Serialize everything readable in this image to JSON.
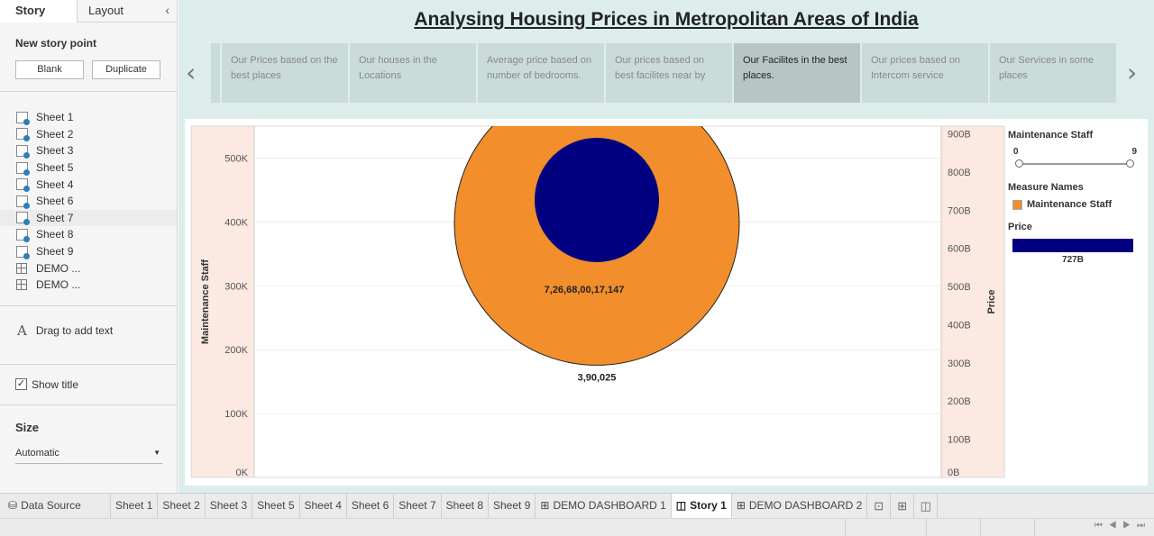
{
  "left_panel": {
    "tabs": [
      "Story",
      "Layout"
    ],
    "collapse_glyph": "‹",
    "new_story_point": "New story point",
    "blank_label": "Blank",
    "duplicate_label": "Duplicate",
    "sheets": [
      "Sheet 1",
      "Sheet 2",
      "Sheet 3",
      "Sheet 5",
      "Sheet 4",
      "Sheet 6",
      "Sheet 7",
      "Sheet 8",
      "Sheet 9"
    ],
    "dashboards": [
      "DEMO ...",
      "DEMO ..."
    ],
    "drag_text": "Drag to add text",
    "show_title_label": "Show title",
    "show_title_checked": "✓",
    "size_title": "Size",
    "size_value": "Automatic"
  },
  "story": {
    "title": "Analysing Housing Prices in Metropolitan Areas of India",
    "prev_icon": "‹",
    "next_icon": "›",
    "points": [
      "Our Prices based on the best places",
      "Our houses in the Locations",
      "Average price based on number of bedrooms.",
      "Our prices based on best facilites near by",
      "Our Facilites in the best places.",
      "Our prices based on Intercom service",
      "Our Services in some places"
    ],
    "active_point": 4
  },
  "chart_data": {
    "type": "scatter",
    "mark": "circle",
    "left_axis": {
      "label": "Maintenance Staff",
      "ticks": [
        "0K",
        "100K",
        "200K",
        "300K",
        "400K",
        "500K"
      ],
      "range": [
        0,
        550000
      ]
    },
    "right_axis": {
      "label": "Price",
      "ticks": [
        "0B",
        "100B",
        "200B",
        "300B",
        "400B",
        "500B",
        "600B",
        "700B",
        "800B",
        "900B"
      ],
      "range": [
        0,
        920000000000
      ]
    },
    "series": [
      {
        "name": "Maintenance Staff",
        "value": 390025,
        "label": "3,90,025",
        "color": "#f28e2b"
      },
      {
        "name": "Price",
        "value": 726680017147,
        "label": "7,26,68,00,17,147",
        "color": "#000080"
      }
    ],
    "legend": {
      "filter_title": "Maintenance Staff",
      "filter_min": "0",
      "filter_max": "9",
      "measure_title": "Measure Names",
      "measure_item": "Maintenance Staff",
      "price_title": "Price",
      "price_value": "727B"
    },
    "grid": true
  },
  "bottom_tabs": {
    "data_source": "Data Source",
    "tabs": [
      "Sheet 1",
      "Sheet 2",
      "Sheet 3",
      "Sheet 5",
      "Sheet 4",
      "Sheet 6",
      "Sheet 7",
      "Sheet 8",
      "Sheet 9",
      "DEMO DASHBOARD 1",
      "Story 1",
      "DEMO DASHBOARD 2"
    ],
    "active": "Story 1",
    "nav_glyphs": "⏮ ◀ ▶ ⏭"
  }
}
